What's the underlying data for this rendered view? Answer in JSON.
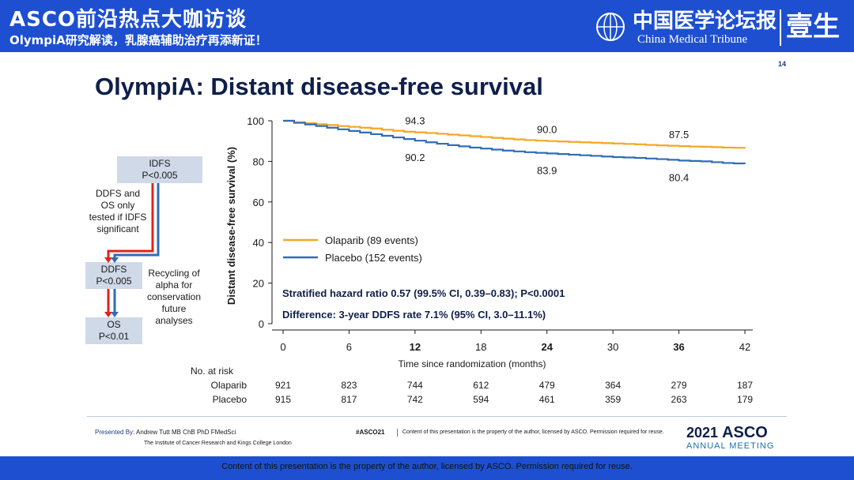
{
  "banner": {
    "title": "ASCO前沿热点大咖访谈",
    "subtitle": "OlympiA研究解读，乳腺癌辅助治疗再添新证！",
    "brand_cn": "中国医学论坛报",
    "brand_en": "China Medical Tribune",
    "brand_yisheng": "壹生"
  },
  "page_number": "14",
  "slide_title": "OlympiA: Distant disease-free survival",
  "flow": {
    "idfs_label": "IDFS",
    "idfs_p": "P<0.005",
    "note_line1": "DDFS and",
    "note_line2": "OS only",
    "note_line3": "tested if IDFS",
    "note_line4": "significant",
    "ddfs_label": "DDFS",
    "ddfs_p": "P<0.005",
    "os_label": "OS",
    "os_p": "P<0.01",
    "recycle_line1": "Recycling of",
    "recycle_line2": "alpha for",
    "recycle_line3": "conservation",
    "recycle_line4": "future",
    "recycle_line5": "analyses"
  },
  "chart_data": {
    "type": "line",
    "title": "OlympiA: Distant disease-free survival",
    "ylabel": "Distant disease-free survival (%)",
    "xlabel": "Time since randomization (months)",
    "xlim": [
      0,
      42
    ],
    "ylim": [
      0,
      100
    ],
    "x_ticks": [
      "0",
      "6",
      "12",
      "18",
      "24",
      "30",
      "36",
      "42"
    ],
    "x_tick_values": [
      0,
      6,
      12,
      18,
      24,
      30,
      36,
      42
    ],
    "y_ticks": [
      "0",
      "20",
      "40",
      "60",
      "80",
      "100"
    ],
    "y_tick_values": [
      0,
      20,
      40,
      60,
      80,
      100
    ],
    "series": [
      {
        "name": "Olaparib (89 events)",
        "color": "#f5a623",
        "x": [
          0,
          1,
          2,
          3,
          4,
          5,
          6,
          7,
          8,
          9,
          10,
          11,
          12,
          13,
          14,
          15,
          16,
          17,
          18,
          19,
          20,
          21,
          22,
          23,
          24,
          25,
          26,
          27,
          28,
          29,
          30,
          31,
          32,
          33,
          34,
          35,
          36,
          37,
          38,
          39,
          40,
          41,
          42
        ],
        "values": [
          100,
          99.3,
          98.8,
          98.3,
          97.9,
          97.4,
          97.0,
          96.6,
          96.2,
          95.6,
          95.1,
          94.6,
          94.3,
          94.0,
          93.6,
          93.2,
          92.8,
          92.4,
          92.0,
          91.6,
          91.2,
          90.8,
          90.5,
          90.2,
          90.0,
          89.8,
          89.6,
          89.4,
          89.2,
          89.0,
          88.8,
          88.6,
          88.4,
          88.1,
          87.9,
          87.7,
          87.5,
          87.3,
          87.2,
          87.0,
          86.8,
          86.7,
          86.6
        ]
      },
      {
        "name": "Placebo (152 events)",
        "color": "#2f6db5",
        "x": [
          0,
          1,
          2,
          3,
          4,
          5,
          6,
          7,
          8,
          9,
          10,
          11,
          12,
          13,
          14,
          15,
          16,
          17,
          18,
          19,
          20,
          21,
          22,
          23,
          24,
          25,
          26,
          27,
          28,
          29,
          30,
          31,
          32,
          33,
          34,
          35,
          36,
          37,
          38,
          39,
          40,
          41,
          42
        ],
        "values": [
          100,
          99.0,
          98.2,
          97.4,
          96.6,
          95.8,
          95.0,
          94.2,
          93.4,
          92.6,
          91.8,
          91.0,
          90.2,
          89.4,
          88.7,
          88.0,
          87.4,
          86.8,
          86.3,
          85.8,
          85.3,
          84.9,
          84.5,
          84.2,
          83.9,
          83.6,
          83.3,
          83.0,
          82.7,
          82.4,
          82.1,
          81.9,
          81.7,
          81.4,
          81.1,
          80.8,
          80.4,
          80.2,
          80.0,
          79.6,
          79.2,
          79.0,
          78.9
        ]
      }
    ],
    "point_labels": [
      {
        "series": "Olaparib",
        "x": 12,
        "label": "94.3"
      },
      {
        "series": "Olaparib",
        "x": 24,
        "label": "90.0"
      },
      {
        "series": "Olaparib",
        "x": 36,
        "label": "87.5"
      },
      {
        "series": "Placebo",
        "x": 12,
        "label": "90.2"
      },
      {
        "series": "Placebo",
        "x": 24,
        "label": "83.9"
      },
      {
        "series": "Placebo",
        "x": 36,
        "label": "80.4"
      }
    ],
    "legend": [
      "Olaparib (89 events)",
      "Placebo (152 events)"
    ],
    "annotations": [
      "Stratified hazard ratio 0.57 (99.5% CI, 0.39–0.83); P<0.0001",
      "Difference: 3-year DDFS rate 7.1% (95% CI, 3.0–11.1%)"
    ],
    "at_risk": {
      "title": "No. at risk",
      "rows": [
        {
          "label": "Olaparib",
          "values": [
            "921",
            "823",
            "744",
            "612",
            "479",
            "364",
            "279",
            "187"
          ]
        },
        {
          "label": "Placebo",
          "values": [
            "915",
            "817",
            "742",
            "594",
            "461",
            "359",
            "263",
            "179"
          ]
        }
      ]
    }
  },
  "footer": {
    "presented_by_label": "Presented By:",
    "presenter": "Andrew Tutt MB ChB PhD FMedSci",
    "institute": "The Institute of Cancer Research and Kings College London",
    "hashtag": "#ASCO21",
    "content_note": "Content of this presentation is the property of the author, licensed by ASCO. Permission required for reuse.",
    "asco_year": "2021",
    "asco_name": "ASCO",
    "asco_annual": "ANNUAL MEETING",
    "bottom_notice": "Content of this presentation is the property of the author, licensed by ASCO. Permission required for reuse."
  },
  "colors": {
    "banner_blue": "#1d4fd0",
    "title_navy": "#0f1f4a",
    "olaparib_orange": "#f5a623",
    "placebo_blue": "#2f6db5",
    "flow_red": "#e0231c",
    "flow_blue": "#2f6db5",
    "flow_box": "#cfd9e8"
  }
}
